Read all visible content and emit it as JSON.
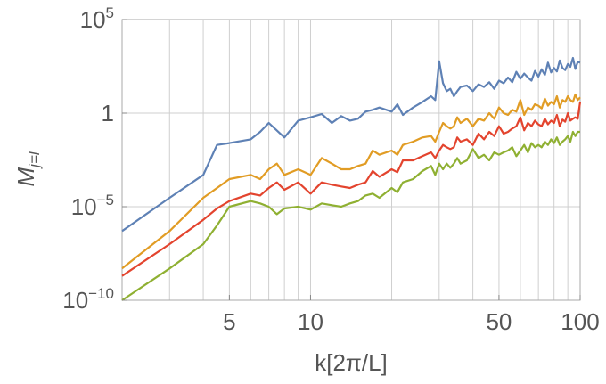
{
  "chart_data": {
    "type": "line",
    "xlabel": "k[2π/L]",
    "ylabel": {
      "main": "M",
      "subscript": "j=l"
    },
    "x_scale": "log",
    "y_scale": "log",
    "xlim": [
      2,
      100
    ],
    "ylim": [
      1e-10,
      100000.0
    ],
    "x_ticks": [
      {
        "value": 5,
        "label": "5"
      },
      {
        "value": 10,
        "label": "10"
      },
      {
        "value": 50,
        "label": "50"
      },
      {
        "value": 100,
        "label": "100"
      }
    ],
    "y_ticks": [
      {
        "value": 1e-10,
        "base": "10",
        "exp": "−10"
      },
      {
        "value": 1e-05,
        "base": "10",
        "exp": "−5"
      },
      {
        "value": 1,
        "base": "1",
        "exp": ""
      },
      {
        "value": 100000.0,
        "base": "10",
        "exp": "5"
      }
    ],
    "x_gridlines": [
      3,
      4,
      5,
      6,
      7,
      8,
      9,
      10,
      20,
      30,
      40,
      50,
      60,
      70,
      80,
      90
    ],
    "y_gridlines": [
      1e-05,
      1
    ],
    "series": [
      {
        "color": "#5e81b5",
        "x": [
          2,
          3,
          4,
          4.5,
          5,
          6,
          6.5,
          7,
          8,
          9,
          10,
          11,
          12,
          13,
          14,
          15,
          16,
          17,
          18,
          20,
          21,
          22,
          24,
          26,
          28,
          29,
          30,
          31,
          32,
          33,
          34,
          35,
          36,
          38,
          40,
          42,
          44,
          46,
          48,
          50,
          52,
          54,
          56,
          58,
          60,
          62,
          64,
          66,
          68,
          70,
          72,
          74,
          76,
          78,
          80,
          82,
          84,
          86,
          88,
          90,
          92,
          94,
          96,
          98,
          100
        ],
        "y": [
          5e-07,
          3e-05,
          0.0005,
          0.02,
          0.025,
          0.04,
          0.1,
          0.3,
          0.05,
          0.4,
          0.6,
          0.9,
          0.3,
          0.7,
          0.4,
          0.5,
          1.2,
          1.5,
          2,
          1.2,
          3,
          0.8,
          2,
          4,
          8,
          5,
          600,
          40,
          15,
          20,
          8,
          15,
          25,
          30,
          15,
          35,
          25,
          45,
          20,
          55,
          40,
          80,
          45,
          160,
          70,
          130,
          80,
          55,
          180,
          90,
          220,
          110,
          500,
          150,
          260,
          170,
          650,
          260,
          200,
          420,
          300,
          900,
          230,
          550,
          500
        ]
      },
      {
        "color": "#e19c24",
        "x": [
          2,
          3,
          4,
          4.5,
          5,
          6,
          6.5,
          7,
          7.5,
          8,
          9,
          10,
          11,
          12,
          13,
          14,
          15,
          16,
          17,
          18,
          20,
          21,
          22,
          24,
          26,
          28,
          29,
          30,
          31,
          32,
          33,
          34,
          35,
          36,
          38,
          40,
          42,
          44,
          46,
          48,
          50,
          52,
          54,
          56,
          58,
          60,
          62,
          64,
          66,
          68,
          70,
          72,
          74,
          76,
          78,
          80,
          82,
          84,
          86,
          88,
          90,
          92,
          94,
          96,
          98,
          100
        ],
        "y": [
          5e-09,
          5e-07,
          3e-05,
          0.0001,
          0.0003,
          0.0005,
          0.0003,
          0.001,
          0.002,
          0.0005,
          0.001,
          0.0005,
          0.004,
          0.002,
          0.001,
          0.001,
          0.0015,
          0.002,
          0.01,
          0.006,
          0.01,
          0.006,
          0.02,
          0.03,
          0.05,
          0.06,
          0.03,
          0.1,
          0.3,
          0.2,
          0.15,
          0.2,
          0.6,
          0.3,
          0.5,
          0.2,
          0.5,
          0.4,
          1,
          0.5,
          2,
          1,
          0.8,
          1.5,
          1.2,
          5,
          0.8,
          2,
          1.5,
          3,
          2.5,
          1.8,
          6,
          2.5,
          4,
          3,
          8,
          2,
          5,
          4,
          8,
          5,
          4,
          10,
          5,
          7
        ]
      },
      {
        "color": "#e3442e",
        "x": [
          2,
          3,
          4,
          4.5,
          5,
          6,
          6.5,
          7,
          7.5,
          8,
          9,
          10,
          11,
          12,
          13,
          14,
          15,
          16,
          17,
          18,
          20,
          21,
          22,
          24,
          26,
          28,
          29,
          30,
          31,
          32,
          33,
          34,
          35,
          36,
          38,
          40,
          42,
          44,
          46,
          48,
          50,
          52,
          54,
          56,
          58,
          60,
          62,
          64,
          66,
          68,
          70,
          72,
          74,
          76,
          78,
          80,
          82,
          84,
          86,
          88,
          90,
          92,
          94,
          96,
          98,
          100
        ],
        "y": [
          2e-09,
          1e-07,
          2e-06,
          8e-06,
          2e-05,
          5e-05,
          4e-05,
          0.0001,
          0.0002,
          8e-05,
          0.0002,
          5e-05,
          0.0002,
          0.00015,
          0.00012,
          0.0001,
          0.00015,
          0.0002,
          0.0008,
          0.0004,
          0.001,
          0.0007,
          0.003,
          0.003,
          0.005,
          0.008,
          0.004,
          0.01,
          0.02,
          0.015,
          0.012,
          0.015,
          0.05,
          0.03,
          0.04,
          0.02,
          0.08,
          0.04,
          0.1,
          0.06,
          0.2,
          0.08,
          0.1,
          0.15,
          0.2,
          0.6,
          0.12,
          0.3,
          0.2,
          0.4,
          0.25,
          0.2,
          0.5,
          0.25,
          0.4,
          0.3,
          0.8,
          0.2,
          0.45,
          0.35,
          1,
          0.4,
          0.5,
          0.6,
          0.5,
          4
        ]
      },
      {
        "color": "#8fb032",
        "x": [
          2,
          3,
          4,
          4.5,
          5,
          6,
          6.5,
          7,
          7.5,
          8,
          9,
          10,
          11,
          12,
          13,
          14,
          15,
          16,
          17,
          18,
          20,
          21,
          22,
          24,
          26,
          28,
          29,
          30,
          31,
          32,
          33,
          34,
          35,
          36,
          38,
          40,
          42,
          44,
          46,
          48,
          50,
          52,
          54,
          56,
          58,
          60,
          62,
          64,
          66,
          68,
          70,
          72,
          74,
          76,
          78,
          80,
          82,
          84,
          86,
          88,
          90,
          92,
          94,
          96,
          98,
          100
        ],
        "y": [
          1e-10,
          5e-09,
          1e-07,
          1e-06,
          1e-05,
          2e-05,
          1.5e-05,
          1e-05,
          4e-06,
          8e-06,
          1e-05,
          7e-06,
          1.5e-05,
          1.2e-05,
          1e-05,
          1.5e-05,
          2e-05,
          4e-05,
          5e-05,
          3e-05,
          0.0001,
          6e-05,
          0.0002,
          0.0003,
          0.0008,
          0.0015,
          0.0005,
          0.002,
          0.001,
          0.002,
          0.0012,
          0.002,
          0.004,
          0.002,
          0.003,
          0.012,
          0.004,
          0.006,
          0.003,
          0.008,
          0.006,
          0.008,
          0.01,
          0.015,
          0.005,
          0.01,
          0.02,
          0.008,
          0.025,
          0.015,
          0.02,
          0.015,
          0.03,
          0.02,
          0.04,
          0.025,
          0.05,
          0.02,
          0.03,
          0.04,
          0.06,
          0.03,
          0.1,
          0.06,
          0.1,
          0.1
        ]
      }
    ]
  }
}
